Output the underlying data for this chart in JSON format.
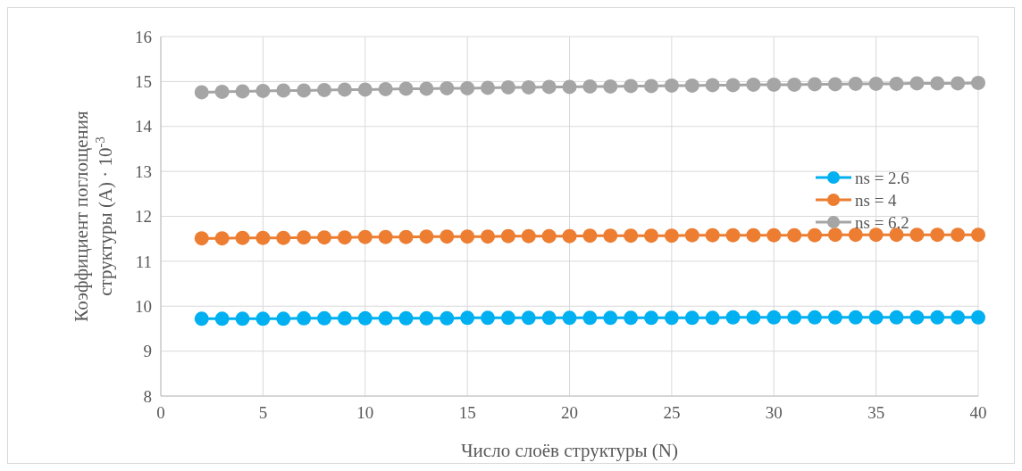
{
  "chart_data": {
    "type": "line",
    "xlabel": "Число слоёв структуры (N)",
    "ylabel": "Коэффициент поглощения структуры (A) · 10$^{-3}$",
    "x": [
      2,
      3,
      4,
      5,
      6,
      7,
      8,
      9,
      10,
      11,
      12,
      13,
      14,
      15,
      16,
      17,
      18,
      19,
      20,
      21,
      22,
      23,
      24,
      25,
      26,
      27,
      28,
      29,
      30,
      31,
      32,
      33,
      34,
      35,
      36,
      37,
      38,
      39,
      40
    ],
    "series": [
      {
        "name": "ns = 2.6",
        "color": "#00b0f0",
        "values": [
          9.72,
          9.72,
          9.72,
          9.72,
          9.72,
          9.73,
          9.73,
          9.73,
          9.73,
          9.73,
          9.73,
          9.73,
          9.73,
          9.74,
          9.74,
          9.74,
          9.74,
          9.74,
          9.74,
          9.74,
          9.74,
          9.74,
          9.74,
          9.74,
          9.74,
          9.74,
          9.75,
          9.75,
          9.75,
          9.75,
          9.75,
          9.75,
          9.75,
          9.75,
          9.75,
          9.75,
          9.75,
          9.75,
          9.75
        ]
      },
      {
        "name": "ns = 4",
        "color": "#ed7d31",
        "values": [
          11.51,
          11.51,
          11.52,
          11.52,
          11.52,
          11.53,
          11.53,
          11.53,
          11.54,
          11.54,
          11.54,
          11.55,
          11.55,
          11.55,
          11.55,
          11.56,
          11.56,
          11.56,
          11.56,
          11.57,
          11.57,
          11.57,
          11.57,
          11.57,
          11.58,
          11.58,
          11.58,
          11.58,
          11.58,
          11.58,
          11.58,
          11.59,
          11.59,
          11.59,
          11.59,
          11.59,
          11.59,
          11.59,
          11.59
        ]
      },
      {
        "name": "ns = 6.2",
        "color": "#a5a5a5",
        "values": [
          14.76,
          14.77,
          14.78,
          14.79,
          14.8,
          14.8,
          14.81,
          14.82,
          14.82,
          14.83,
          14.84,
          14.84,
          14.85,
          14.85,
          14.86,
          14.87,
          14.87,
          14.88,
          14.88,
          14.89,
          14.89,
          14.9,
          14.9,
          14.91,
          14.91,
          14.92,
          14.92,
          14.93,
          14.93,
          14.93,
          14.94,
          14.94,
          14.95,
          14.95,
          14.95,
          14.96,
          14.96,
          14.96,
          14.97
        ]
      }
    ],
    "xlim": [
      0,
      40
    ],
    "xticks": [
      0,
      5,
      10,
      15,
      20,
      25,
      30,
      35,
      40
    ],
    "ylim": [
      8,
      16
    ],
    "yticks": [
      8,
      9,
      10,
      11,
      12,
      13,
      14,
      15,
      16
    ],
    "grid": true,
    "legend": "right",
    "marker": "circle",
    "line_style": "solid"
  }
}
